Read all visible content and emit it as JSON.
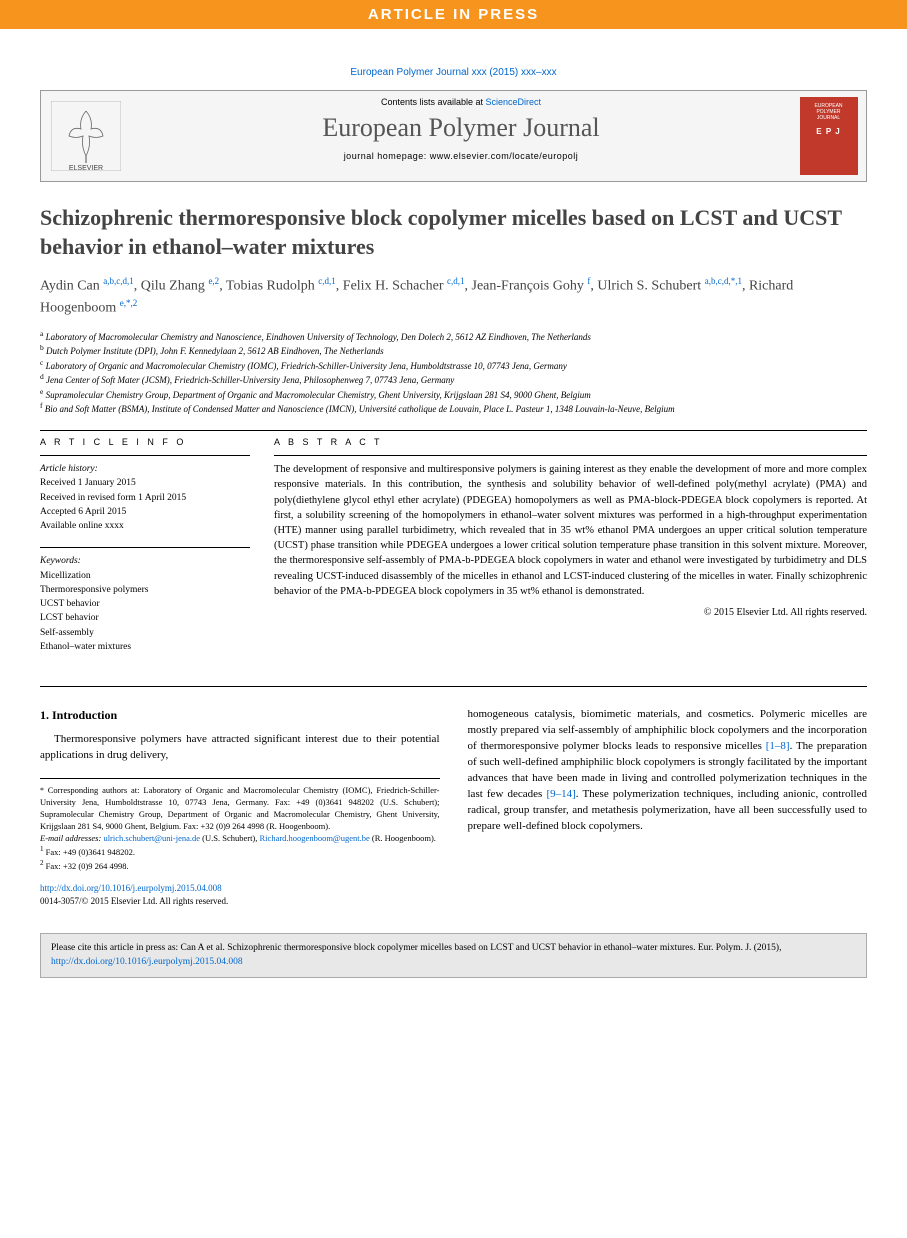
{
  "banner": "ARTICLE IN PRESS",
  "citation_top": "European Polymer Journal xxx (2015) xxx–xxx",
  "header": {
    "contents_prefix": "Contents lists available at ",
    "contents_link": "ScienceDirect",
    "journal": "European Polymer Journal",
    "homepage_prefix": "journal homepage: ",
    "homepage": "www.elsevier.com/locate/europolj",
    "publisher": "ELSEVIER",
    "cover_text1": "EUROPEAN",
    "cover_text2": "POLYMER",
    "cover_text3": "JOURNAL",
    "cover_epj": "E P J"
  },
  "title": "Schizophrenic thermoresponsive block copolymer micelles based on LCST and UCST behavior in ethanol–water mixtures",
  "authors_html": "Aydin Can <sup>a,b,c,d,1</sup>, Qilu Zhang <sup>e,2</sup>, Tobias Rudolph <sup>c,d,1</sup>, Felix H. Schacher <sup>c,d,1</sup>, Jean-François Gohy <sup>f</sup>, Ulrich S. Schubert <sup>a,b,c,d,*,1</sup>, Richard Hoogenboom <sup>e,*,2</sup>",
  "affiliations": [
    {
      "sup": "a",
      "text": "Laboratory of Macromolecular Chemistry and Nanoscience, Eindhoven University of Technology, Den Dolech 2, 5612 AZ Eindhoven, The Netherlands"
    },
    {
      "sup": "b",
      "text": "Dutch Polymer Institute (DPI), John F. Kennedylaan 2, 5612 AB Eindhoven, The Netherlands"
    },
    {
      "sup": "c",
      "text": "Laboratory of Organic and Macromolecular Chemistry (IOMC), Friedrich-Schiller-University Jena, Humboldtstrasse 10, 07743 Jena, Germany"
    },
    {
      "sup": "d",
      "text": "Jena Center of Soft Mater (JCSM), Friedrich-Schiller-University Jena, Philosophenweg 7, 07743 Jena, Germany"
    },
    {
      "sup": "e",
      "text": "Supramolecular Chemistry Group, Department of Organic and Macromolecular Chemistry, Ghent University, Krijgslaan 281 S4, 9000 Ghent, Belgium"
    },
    {
      "sup": "f",
      "text": "Bio and Soft Matter (BSMA), Institute of Condensed Matter and Nanoscience (IMCN), Université catholique de Louvain, Place L. Pasteur 1, 1348 Louvain-la-Neuve, Belgium"
    }
  ],
  "article_info": {
    "label": "A R T I C L E   I N F O",
    "history_label": "Article history:",
    "history": [
      "Received 1 January 2015",
      "Received in revised form 1 April 2015",
      "Accepted 6 April 2015",
      "Available online xxxx"
    ],
    "keywords_label": "Keywords:",
    "keywords": [
      "Micellization",
      "Thermoresponsive polymers",
      "UCST behavior",
      "LCST behavior",
      "Self-assembly",
      "Ethanol–water mixtures"
    ]
  },
  "abstract": {
    "label": "A B S T R A C T",
    "text": "The development of responsive and multiresponsive polymers is gaining interest as they enable the development of more and more complex responsive materials. In this contribution, the synthesis and solubility behavior of well-defined poly(methyl acrylate) (PMA) and poly(diethylene glycol ethyl ether acrylate) (PDEGEA) homopolymers as well as PMA-block-PDEGEA block copolymers is reported. At first, a solubility screening of the homopolymers in ethanol–water solvent mixtures was performed in a high-throughput experimentation (HTE) manner using parallel turbidimetry, which revealed that in 35 wt% ethanol PMA undergoes an upper critical solution temperature (UCST) phase transition while PDEGEA undergoes a lower critical solution temperature phase transition in this solvent mixture. Moreover, the thermoresponsive self-assembly of PMA-b-PDEGEA block copolymers in water and ethanol were investigated by turbidimetry and DLS revealing UCST-induced disassembly of the micelles in ethanol and LCST-induced clustering of the micelles in water. Finally schizophrenic behavior of the PMA-b-PDEGEA block copolymers in 35 wt% ethanol is demonstrated.",
    "copyright": "© 2015 Elsevier Ltd. All rights reserved."
  },
  "body": {
    "intro_heading": "1. Introduction",
    "intro_p1": "Thermoresponsive polymers have attracted significant interest due to their potential applications in drug delivery,",
    "intro_p2_a": "homogeneous catalysis, biomimetic materials, and cosmetics. Polymeric micelles are mostly prepared via self-assembly of amphiphilic block copolymers and the incorporation of thermoresponsive polymer blocks leads to responsive micelles ",
    "intro_p2_ref1": "[1–8]",
    "intro_p2_b": ". The preparation of such well-defined amphiphilic block copolymers is strongly facilitated by the important advances that have been made in living and controlled polymerization techniques in the last few decades ",
    "intro_p2_ref2": "[9–14]",
    "intro_p2_c": ". These polymerization techniques, including anionic, controlled radical, group transfer, and metathesis polymerization, have all been successfully used to prepare well-defined block copolymers."
  },
  "footnotes": {
    "corr_label": "* ",
    "corr_text": "Corresponding authors at: Laboratory of Organic and Macromolecular Chemistry (IOMC), Friedrich-Schiller-University Jena, Humboldtstrasse 10, 07743 Jena, Germany. Fax: +49 (0)3641 948202 (U.S. Schubert); Supramolecular Chemistry Group, Department of Organic and Macromolecular Chemistry, Ghent University, Krijgslaan 281 S4, 9000 Ghent, Belgium. Fax: +32 (0)9 264 4998 (R. Hoogenboom).",
    "email_label": "E-mail addresses: ",
    "email1": "ulrich.schubert@uni-jena.de",
    "email1_suffix": " (U.S. Schubert), ",
    "email2": "Richard.hoogenboom@ugent.be",
    "email2_suffix": " (R. Hoogenboom).",
    "fn1": "Fax: +49 (0)3641 948202.",
    "fn2": "Fax: +32 (0)9 264 4998."
  },
  "doi": {
    "url": "http://dx.doi.org/10.1016/j.eurpolymj.2015.04.008",
    "issn": "0014-3057/© 2015 Elsevier Ltd. All rights reserved."
  },
  "cite_box": {
    "prefix": "Please cite this article in press as: Can A et al. Schizophrenic thermoresponsive block copolymer micelles based on LCST and UCST behavior in ethanol–water mixtures. Eur. Polym. J. (2015), ",
    "link": "http://dx.doi.org/10.1016/j.eurpolymj.2015.04.008"
  }
}
